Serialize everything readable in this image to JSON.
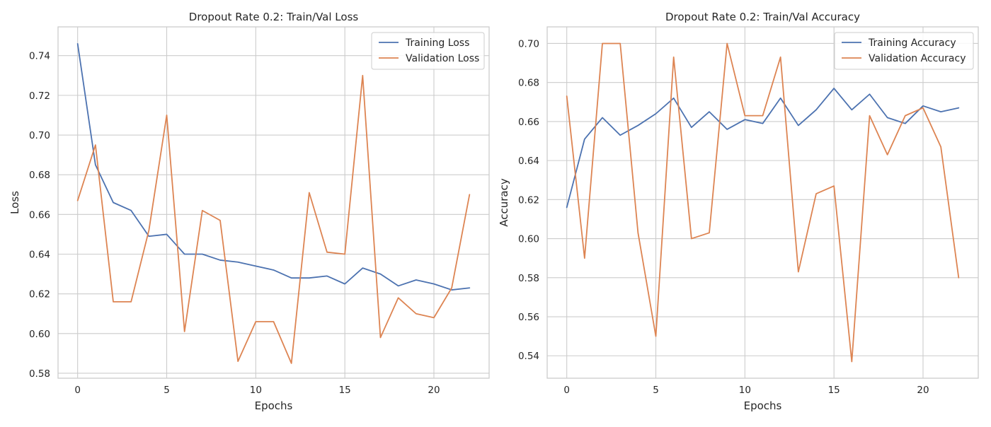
{
  "chart_data": [
    {
      "type": "line",
      "title": "Dropout Rate 0.2:  Train/Val Loss",
      "xlabel": "Epochs",
      "ylabel": "Loss",
      "x": [
        0,
        1,
        2,
        3,
        4,
        5,
        6,
        7,
        8,
        9,
        10,
        11,
        12,
        13,
        14,
        15,
        16,
        17,
        18,
        19,
        20,
        21,
        22
      ],
      "xlim": [
        -1.1,
        23.1
      ],
      "ylim": [
        0.5775,
        0.7545
      ],
      "xticks": [
        0,
        5,
        10,
        15,
        20
      ],
      "xtick_labels": [
        "0",
        "5",
        "10",
        "15",
        "20"
      ],
      "yticks": [
        0.58,
        0.6,
        0.62,
        0.64,
        0.66,
        0.68,
        0.7,
        0.72,
        0.74
      ],
      "ytick_labels": [
        "0.58",
        "0.60",
        "0.62",
        "0.64",
        "0.66",
        "0.68",
        "0.70",
        "0.72",
        "0.74"
      ],
      "grid": true,
      "legend_position": "top-right",
      "series": [
        {
          "name": "Training Loss",
          "color": "#4c72b0",
          "values": [
            0.746,
            0.685,
            0.666,
            0.662,
            0.649,
            0.65,
            0.64,
            0.64,
            0.637,
            0.636,
            0.634,
            0.632,
            0.628,
            0.628,
            0.629,
            0.625,
            0.633,
            0.63,
            0.624,
            0.627,
            0.625,
            0.622,
            0.623
          ]
        },
        {
          "name": "Validation Loss",
          "color": "#dd8452",
          "values": [
            0.667,
            0.695,
            0.616,
            0.616,
            0.652,
            0.71,
            0.601,
            0.662,
            0.657,
            0.586,
            0.606,
            0.606,
            0.585,
            0.671,
            0.641,
            0.64,
            0.73,
            0.598,
            0.618,
            0.61,
            0.608,
            0.623,
            0.67
          ]
        }
      ]
    },
    {
      "type": "line",
      "title": "Dropout Rate 0.2:  Train/Val Accuracy",
      "xlabel": "Epochs",
      "ylabel": "Accuracy",
      "x": [
        0,
        1,
        2,
        3,
        4,
        5,
        6,
        7,
        8,
        9,
        10,
        11,
        12,
        13,
        14,
        15,
        16,
        17,
        18,
        19,
        20,
        21,
        22
      ],
      "xlim": [
        -1.1,
        23.1
      ],
      "ylim": [
        0.5285,
        0.7085
      ],
      "xticks": [
        0,
        5,
        10,
        15,
        20
      ],
      "xtick_labels": [
        "0",
        "5",
        "10",
        "15",
        "20"
      ],
      "yticks": [
        0.54,
        0.56,
        0.58,
        0.6,
        0.62,
        0.64,
        0.66,
        0.68,
        0.7
      ],
      "ytick_labels": [
        "0.54",
        "0.56",
        "0.58",
        "0.60",
        "0.62",
        "0.64",
        "0.66",
        "0.68",
        "0.70"
      ],
      "grid": true,
      "legend_position": "top-right",
      "series": [
        {
          "name": "Training Accuracy",
          "color": "#4c72b0",
          "values": [
            0.616,
            0.651,
            0.662,
            0.653,
            0.658,
            0.664,
            0.672,
            0.657,
            0.665,
            0.656,
            0.661,
            0.659,
            0.672,
            0.658,
            0.666,
            0.677,
            0.666,
            0.674,
            0.662,
            0.659,
            0.668,
            0.665,
            0.667
          ]
        },
        {
          "name": "Validation Accuracy",
          "color": "#dd8452",
          "values": [
            0.673,
            0.59,
            0.7,
            0.7,
            0.603,
            0.55,
            0.693,
            0.6,
            0.603,
            0.7,
            0.663,
            0.663,
            0.693,
            0.583,
            0.623,
            0.627,
            0.537,
            0.663,
            0.643,
            0.663,
            0.667,
            0.647,
            0.58
          ]
        }
      ]
    }
  ]
}
